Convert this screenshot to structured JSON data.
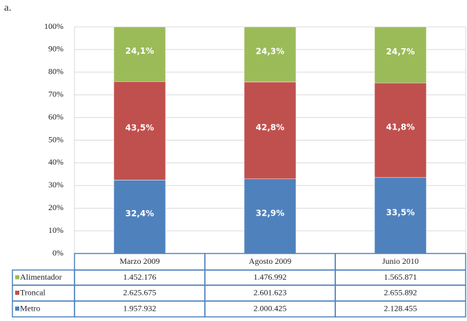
{
  "panel_label": "a.",
  "chart_data": {
    "type": "stacked_bar_100",
    "categories": [
      "Marzo 2009",
      "Agosto 2009",
      "Junio 2010"
    ],
    "series": [
      {
        "name": "Metro",
        "color": "#4f81bd",
        "values": [
          32.4,
          32.9,
          33.5
        ],
        "value_labels": [
          "32,4%",
          "32,9%",
          "33,5%"
        ],
        "table_values": [
          "1.957.932",
          "2.000.425",
          "2.128.455"
        ]
      },
      {
        "name": "Troncal",
        "color": "#c0504d",
        "values": [
          43.5,
          42.8,
          41.8
        ],
        "value_labels": [
          "43,5%",
          "42,8%",
          "41,8%"
        ],
        "table_values": [
          "2.625.675",
          "2.601.623",
          "2.655.892"
        ]
      },
      {
        "name": "Alimentador",
        "color": "#9bbb59",
        "values": [
          24.1,
          24.3,
          24.7
        ],
        "value_labels": [
          "24,1%",
          "24,3%",
          "24,7%"
        ],
        "table_values": [
          "1.452.176",
          "1.476.992",
          "1.565.871"
        ]
      }
    ],
    "ylim": [
      0,
      100
    ],
    "yticks": [
      {
        "value": 0,
        "label": "0%"
      },
      {
        "value": 10,
        "label": "10%"
      },
      {
        "value": 20,
        "label": "20%"
      },
      {
        "value": 30,
        "label": "30%"
      },
      {
        "value": 40,
        "label": "40%"
      },
      {
        "value": 50,
        "label": "50%"
      },
      {
        "value": 60,
        "label": "60%"
      },
      {
        "value": 70,
        "label": "70%"
      },
      {
        "value": 80,
        "label": "80%"
      },
      {
        "value": 90,
        "label": "90%"
      },
      {
        "value": 100,
        "label": "100%"
      }
    ],
    "grid": true
  }
}
